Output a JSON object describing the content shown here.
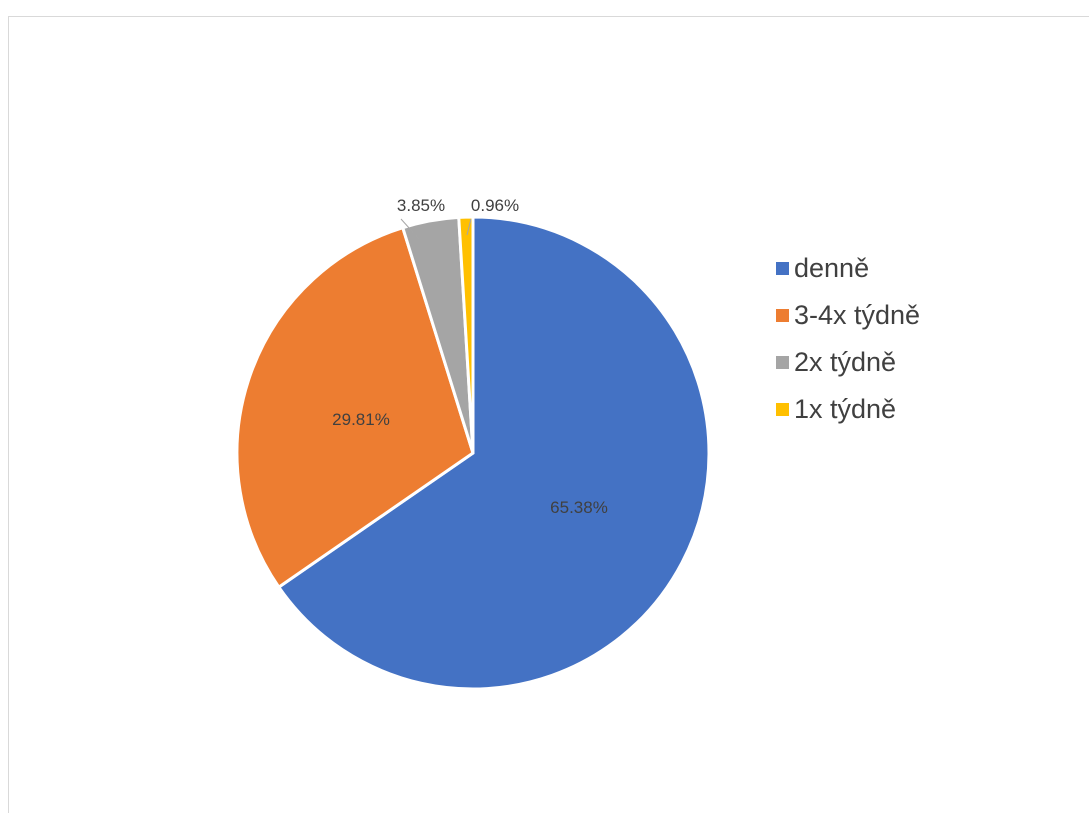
{
  "chart_data": {
    "type": "pie",
    "categories": [
      "denně",
      "3-4x týdně",
      "2x týdně",
      "1x týdně"
    ],
    "values": [
      65.38,
      29.81,
      3.85,
      0.96
    ],
    "data_labels": [
      "65.38%",
      "29.81%",
      "3.85%",
      "0.96%"
    ],
    "colors": [
      "#4472c4",
      "#ed7d31",
      "#a5a5a5",
      "#ffc000"
    ],
    "legend_position": "right",
    "start_angle_deg": 0,
    "direction": "clockwise"
  }
}
